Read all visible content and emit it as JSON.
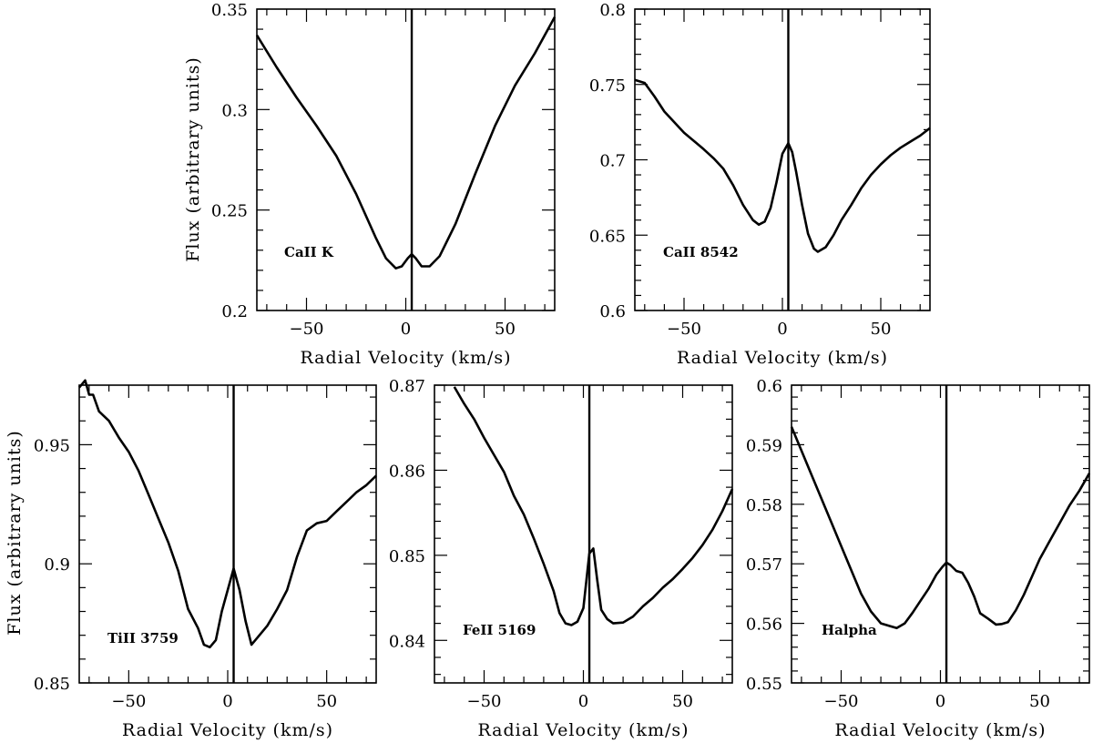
{
  "chart_data": [
    {
      "type": "line",
      "annotation": "CaII K",
      "xlabel": "Radial Velocity (km/s)",
      "ylabel": "Flux (arbitrary units)",
      "xlim": [
        -75,
        75
      ],
      "ylim": [
        0.2,
        0.35
      ],
      "xticks": [
        -50,
        0,
        50
      ],
      "xtick_labels": [
        "−50",
        "0",
        "50"
      ],
      "yticks": [
        0.2,
        0.25,
        0.3,
        0.35
      ],
      "ytick_labels": [
        "0.2",
        "0.25",
        "0.3",
        "0.35"
      ],
      "vline_x": 3,
      "x": [
        -75,
        -65,
        -55,
        -45,
        -35,
        -25,
        -15,
        -10,
        -5,
        -2,
        1,
        3,
        5,
        8,
        12,
        17,
        25,
        35,
        45,
        55,
        65,
        75
      ],
      "y": [
        0.337,
        0.321,
        0.306,
        0.292,
        0.277,
        0.258,
        0.236,
        0.226,
        0.221,
        0.222,
        0.226,
        0.228,
        0.226,
        0.222,
        0.222,
        0.227,
        0.243,
        0.268,
        0.292,
        0.312,
        0.328,
        0.346
      ]
    },
    {
      "type": "line",
      "annotation": "CaII 8542",
      "xlabel": "Radial Velocity (km/s)",
      "ylabel": "",
      "xlim": [
        -75,
        75
      ],
      "ylim": [
        0.6,
        0.8
      ],
      "xticks": [
        -50,
        0,
        50
      ],
      "xtick_labels": [
        "−50",
        "0",
        "50"
      ],
      "yticks": [
        0.6,
        0.65,
        0.7,
        0.75,
        0.8
      ],
      "ytick_labels": [
        "0.6",
        "0.65",
        "0.7",
        "0.75",
        "0.8"
      ],
      "vline_x": 3,
      "x": [
        -75,
        -70,
        -65,
        -60,
        -50,
        -40,
        -35,
        -30,
        -25,
        -20,
        -15,
        -12,
        -9,
        -6,
        -3,
        0,
        3,
        5,
        7,
        10,
        13,
        16,
        18,
        22,
        26,
        30,
        35,
        40,
        45,
        50,
        55,
        60,
        65,
        70,
        75
      ],
      "y": [
        0.753,
        0.751,
        0.742,
        0.732,
        0.718,
        0.707,
        0.701,
        0.694,
        0.683,
        0.67,
        0.66,
        0.657,
        0.659,
        0.668,
        0.685,
        0.704,
        0.711,
        0.705,
        0.692,
        0.67,
        0.651,
        0.641,
        0.639,
        0.642,
        0.65,
        0.66,
        0.67,
        0.681,
        0.69,
        0.697,
        0.703,
        0.708,
        0.712,
        0.716,
        0.721
      ]
    },
    {
      "type": "line",
      "annotation": "TiII 3759",
      "xlabel": "Radial Velocity (km/s)",
      "ylabel": "Flux (arbitrary units)",
      "xlim": [
        -75,
        75
      ],
      "ylim": [
        0.85,
        0.975
      ],
      "xticks": [
        -50,
        0,
        50
      ],
      "xtick_labels": [
        "−50",
        "0",
        "50"
      ],
      "yticks": [
        0.85,
        0.9,
        0.95
      ],
      "ytick_labels": [
        "0.85",
        "0.9",
        "0.95"
      ],
      "vline_x": 3,
      "x": [
        -75,
        -72,
        -70,
        -68,
        -65,
        -60,
        -55,
        -50,
        -45,
        -40,
        -35,
        -30,
        -25,
        -20,
        -15,
        -12,
        -9,
        -6,
        -3,
        0,
        3,
        6,
        9,
        12,
        15,
        20,
        25,
        30,
        35,
        40,
        45,
        50,
        55,
        60,
        65,
        70,
        75
      ],
      "y": [
        0.974,
        0.977,
        0.971,
        0.971,
        0.964,
        0.96,
        0.953,
        0.947,
        0.939,
        0.929,
        0.919,
        0.909,
        0.897,
        0.881,
        0.873,
        0.866,
        0.865,
        0.868,
        0.88,
        0.889,
        0.898,
        0.889,
        0.876,
        0.866,
        0.869,
        0.874,
        0.881,
        0.889,
        0.903,
        0.914,
        0.917,
        0.918,
        0.922,
        0.926,
        0.93,
        0.933,
        0.937
      ]
    },
    {
      "type": "line",
      "annotation": "FeII 5169",
      "xlabel": "Radial Velocity (km/s)",
      "ylabel": "",
      "xlim": [
        -75,
        75
      ],
      "ylim": [
        0.835,
        0.87
      ],
      "xticks": [
        -50,
        0,
        50
      ],
      "xtick_labels": [
        "−50",
        "0",
        "50"
      ],
      "yticks": [
        0.84,
        0.85,
        0.86,
        0.87
      ],
      "ytick_labels": [
        "0.84",
        "0.85",
        "0.86",
        "0.87"
      ],
      "vline_x": 3,
      "x": [
        -65,
        -60,
        -55,
        -50,
        -45,
        -40,
        -35,
        -30,
        -25,
        -20,
        -15,
        -12,
        -9,
        -6,
        -3,
        0,
        3,
        5,
        7,
        9,
        12,
        15,
        20,
        25,
        30,
        35,
        40,
        45,
        50,
        55,
        60,
        65,
        70,
        75
      ],
      "y": [
        0.8698,
        0.8678,
        0.866,
        0.8638,
        0.8618,
        0.8598,
        0.857,
        0.8548,
        0.852,
        0.849,
        0.8458,
        0.8432,
        0.842,
        0.8418,
        0.8422,
        0.8438,
        0.8502,
        0.8508,
        0.847,
        0.8436,
        0.8425,
        0.842,
        0.8421,
        0.8428,
        0.844,
        0.845,
        0.8462,
        0.8472,
        0.8484,
        0.8497,
        0.8512,
        0.853,
        0.8552,
        0.8578
      ]
    },
    {
      "type": "line",
      "annotation": "Halpha",
      "xlabel": "Radial Velocity (km/s)",
      "ylabel": "",
      "xlim": [
        -75,
        75
      ],
      "ylim": [
        0.55,
        0.6
      ],
      "xticks": [
        -50,
        0,
        50
      ],
      "xtick_labels": [
        "−50",
        "0",
        "50"
      ],
      "yticks": [
        0.55,
        0.56,
        0.57,
        0.58,
        0.59,
        0.6
      ],
      "ytick_labels": [
        "0.55",
        "0.56",
        "0.57",
        "0.58",
        "0.59",
        "0.6"
      ],
      "vline_x": 3,
      "x": [
        -75,
        -70,
        -65,
        -60,
        -55,
        -50,
        -45,
        -40,
        -35,
        -30,
        -25,
        -22,
        -18,
        -14,
        -10,
        -6,
        -2,
        1,
        3,
        5,
        8,
        11,
        14,
        17,
        20,
        24,
        28,
        31,
        34,
        38,
        42,
        46,
        50,
        55,
        60,
        65,
        70,
        75
      ],
      "y": [
        0.593,
        0.589,
        0.585,
        0.581,
        0.577,
        0.573,
        0.569,
        0.565,
        0.562,
        0.56,
        0.5595,
        0.5592,
        0.56,
        0.5618,
        0.5638,
        0.5658,
        0.5682,
        0.5695,
        0.5702,
        0.5698,
        0.5688,
        0.5685,
        0.5668,
        0.5645,
        0.5617,
        0.5608,
        0.5598,
        0.5599,
        0.5602,
        0.5622,
        0.5648,
        0.5678,
        0.5708,
        0.5738,
        0.5768,
        0.5798,
        0.5823,
        0.5852
      ]
    }
  ]
}
